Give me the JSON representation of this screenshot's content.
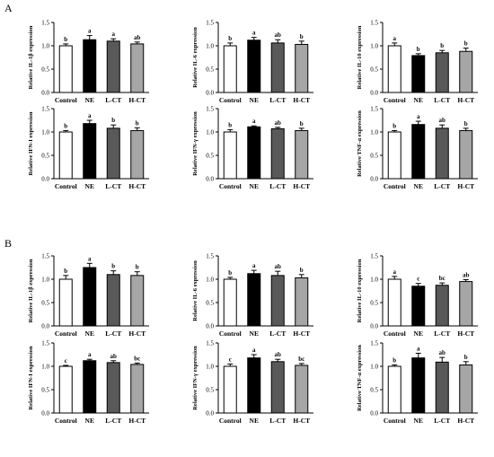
{
  "panels": [
    "A",
    "B"
  ],
  "chart_data": [
    {
      "panel": "A",
      "type": "bar",
      "ylabel": "Relative IL-1β expression",
      "categories": [
        "Control",
        "NE",
        "L-CT",
        "H-CT"
      ],
      "values": [
        1.0,
        1.13,
        1.1,
        1.04
      ],
      "errors": [
        0.04,
        0.09,
        0.05,
        0.04
      ],
      "significance": [
        "b",
        "a",
        "a",
        "ab"
      ],
      "ylim": [
        0,
        1.5
      ],
      "yticks": [
        "0.0",
        "0.5",
        "1.0",
        "1.5"
      ]
    },
    {
      "panel": "A",
      "type": "bar",
      "ylabel": "Relative IL-6 expression",
      "categories": [
        "Control",
        "NE",
        "L-CT",
        "H-CT"
      ],
      "values": [
        1.0,
        1.12,
        1.06,
        1.03
      ],
      "errors": [
        0.06,
        0.06,
        0.07,
        0.07
      ],
      "significance": [
        "b",
        "a",
        "ab",
        "b"
      ],
      "ylim": [
        0,
        1.5
      ],
      "yticks": [
        "0.0",
        "0.5",
        "1.0",
        "1.5"
      ]
    },
    {
      "panel": "A",
      "type": "bar",
      "ylabel": "Relative IL-10 expression",
      "categories": [
        "Control",
        "NE",
        "L-CT",
        "H-CT"
      ],
      "values": [
        1.0,
        0.79,
        0.85,
        0.88
      ],
      "errors": [
        0.06,
        0.04,
        0.05,
        0.07
      ],
      "significance": [
        "a",
        "b",
        "b",
        "b"
      ],
      "ylim": [
        0,
        1.5
      ],
      "yticks": [
        "0.0",
        "0.5",
        "1.0",
        "1.5"
      ]
    },
    {
      "panel": "A",
      "type": "bar",
      "ylabel": "Relative IFN-I expression",
      "categories": [
        "Control",
        "NE",
        "L-CT",
        "H-CT"
      ],
      "values": [
        1.0,
        1.18,
        1.08,
        1.03
      ],
      "errors": [
        0.03,
        0.07,
        0.07,
        0.06
      ],
      "significance": [
        "b",
        "a",
        "b",
        "b"
      ],
      "ylim": [
        0,
        1.5
      ],
      "yticks": [
        "0.0",
        "0.5",
        "1.0",
        "1.5"
      ]
    },
    {
      "panel": "A",
      "type": "bar",
      "ylabel": "Relative IFN-γ expression",
      "categories": [
        "Control",
        "NE",
        "L-CT",
        "H-CT"
      ],
      "values": [
        1.0,
        1.11,
        1.07,
        1.03
      ],
      "errors": [
        0.05,
        0.02,
        0.03,
        0.05
      ],
      "significance": [
        "b",
        "a",
        "ab",
        "b"
      ],
      "ylim": [
        0,
        1.5
      ],
      "yticks": [
        "0.0",
        "0.5",
        "1.0",
        "1.5"
      ]
    },
    {
      "panel": "A",
      "type": "bar",
      "ylabel": "Relative TNF-α expression",
      "categories": [
        "Control",
        "NE",
        "L-CT",
        "H-CT"
      ],
      "values": [
        1.0,
        1.16,
        1.08,
        1.03
      ],
      "errors": [
        0.03,
        0.07,
        0.07,
        0.05
      ],
      "significance": [
        "b",
        "a",
        "ab",
        "b"
      ],
      "ylim": [
        0,
        1.5
      ],
      "yticks": [
        "0.0",
        "0.5",
        "1.0",
        "1.5"
      ]
    },
    {
      "panel": "B",
      "type": "bar",
      "ylabel": "Relative IL-1β expression",
      "categories": [
        "Control",
        "NE",
        "L-CT",
        "H-CT"
      ],
      "values": [
        1.0,
        1.25,
        1.1,
        1.08
      ],
      "errors": [
        0.08,
        0.09,
        0.08,
        0.08
      ],
      "significance": [
        "b",
        "a",
        "b",
        "b"
      ],
      "ylim": [
        0,
        1.5
      ],
      "yticks": [
        "0.0",
        "0.5",
        "1.0",
        "1.5"
      ]
    },
    {
      "panel": "B",
      "type": "bar",
      "ylabel": "Relative IL-6 expression",
      "categories": [
        "Control",
        "NE",
        "L-CT",
        "H-CT"
      ],
      "values": [
        1.0,
        1.12,
        1.08,
        1.03
      ],
      "errors": [
        0.04,
        0.07,
        0.09,
        0.07
      ],
      "significance": [
        "b",
        "a",
        "ab",
        "b"
      ],
      "ylim": [
        0,
        1.5
      ],
      "yticks": [
        "0.0",
        "0.5",
        "1.0",
        "1.5"
      ]
    },
    {
      "panel": "B",
      "type": "bar",
      "ylabel": "Relative IL-10 expression",
      "categories": [
        "Control",
        "NE",
        "L-CT",
        "H-CT"
      ],
      "values": [
        1.0,
        0.85,
        0.87,
        0.95
      ],
      "errors": [
        0.06,
        0.06,
        0.05,
        0.04
      ],
      "significance": [
        "a",
        "c",
        "bc",
        "ab"
      ],
      "ylim": [
        0,
        1.5
      ],
      "yticks": [
        "0.0",
        "0.5",
        "1.0",
        "1.5"
      ]
    },
    {
      "panel": "B",
      "type": "bar",
      "ylabel": "Relative IFN-I expression",
      "categories": [
        "Control",
        "NE",
        "L-CT",
        "H-CT"
      ],
      "values": [
        1.0,
        1.12,
        1.08,
        1.04
      ],
      "errors": [
        0.02,
        0.03,
        0.04,
        0.03
      ],
      "significance": [
        "c",
        "a",
        "ab",
        "bc"
      ],
      "ylim": [
        0,
        1.5
      ],
      "yticks": [
        "0.0",
        "0.5",
        "1.0",
        "1.5"
      ]
    },
    {
      "panel": "B",
      "type": "bar",
      "ylabel": "Relative IFN-γ expression",
      "categories": [
        "Control",
        "NE",
        "L-CT",
        "H-CT"
      ],
      "values": [
        1.0,
        1.18,
        1.1,
        1.02
      ],
      "errors": [
        0.05,
        0.07,
        0.05,
        0.04
      ],
      "significance": [
        "c",
        "a",
        "ab",
        "bc"
      ],
      "ylim": [
        0,
        1.5
      ],
      "yticks": [
        "0.0",
        "0.5",
        "1.0",
        "1.5"
      ]
    },
    {
      "panel": "B",
      "type": "bar",
      "ylabel": "Relative TNF-α expression",
      "categories": [
        "Control",
        "NE",
        "L-CT",
        "H-CT"
      ],
      "values": [
        1.0,
        1.18,
        1.09,
        1.03
      ],
      "errors": [
        0.03,
        0.1,
        0.1,
        0.07
      ],
      "significance": [
        "b",
        "a",
        "ab",
        "b"
      ],
      "ylim": [
        0,
        1.5
      ],
      "yticks": [
        "0.0",
        "0.5",
        "1.0",
        "1.5"
      ]
    }
  ],
  "colors": {
    "bar_fills": [
      "#ffffff",
      "#000000",
      "#595959",
      "#a6a6a6"
    ],
    "stroke": "#000000"
  }
}
